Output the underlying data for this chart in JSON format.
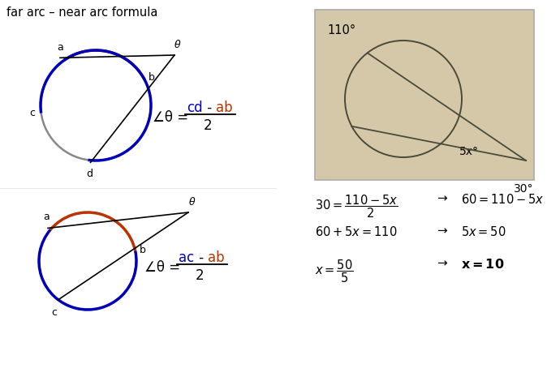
{
  "title": "far arc – near arc formula",
  "bg_color": "#ffffff",
  "diagram_bg": "#d4c8a8",
  "circle_color": "#888888",
  "arc_blue": "#0000bb",
  "arc_red": "#bb3300",
  "line_color": "#000000",
  "label_color_blue": "#0000bb",
  "label_color_red": "#bb3300",
  "arc_110": "110°",
  "arc_5x": "5x°",
  "arc_30": "30°",
  "photo_line_color": "#4a4a3a"
}
